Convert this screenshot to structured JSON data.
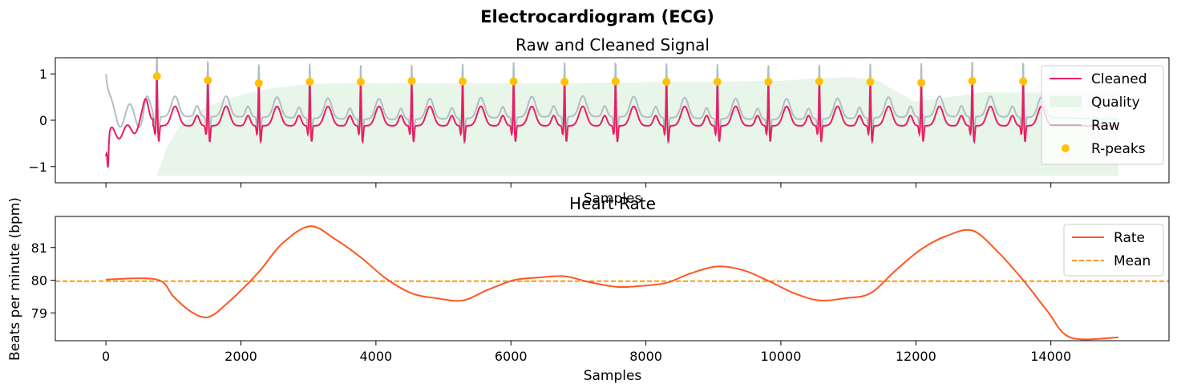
{
  "figure": {
    "suptitle": "Electrocardiogram (ECG)"
  },
  "chart_data": [
    {
      "type": "line",
      "title": "Raw and Cleaned Signal",
      "xlabel": "Samples",
      "ylabel": "",
      "xlim": [
        -750,
        15750
      ],
      "ylim": [
        -1.35,
        1.35
      ],
      "yticks": [
        -1,
        0,
        1
      ],
      "ytick_labels": [
        "−1",
        "0",
        "1"
      ],
      "xticks": [
        0,
        2000,
        4000,
        6000,
        8000,
        10000,
        12000,
        14000
      ],
      "xtick_labels_shown": false,
      "grid": false,
      "legend_position": "top-right",
      "series": [
        {
          "name": "Cleaned",
          "kind": "line",
          "color": "#E91E63"
        },
        {
          "name": "Quality",
          "kind": "area",
          "color": "#E8F5E9"
        },
        {
          "name": "Raw",
          "kind": "line",
          "color": "#B0BEC5"
        },
        {
          "name": "R-peaks",
          "kind": "scatter",
          "color": "#FFC107"
        }
      ],
      "r_peaks": {
        "x": [
          755,
          1510,
          2265,
          3020,
          3775,
          4530,
          5285,
          6040,
          6795,
          7550,
          8305,
          9060,
          9815,
          10570,
          11325,
          12080,
          12835,
          13590
        ],
        "y": [
          0.95,
          0.86,
          0.8,
          0.83,
          0.83,
          0.85,
          0.84,
          0.84,
          0.83,
          0.84,
          0.83,
          0.83,
          0.83,
          0.84,
          0.83,
          0.81,
          0.85,
          0.84
        ]
      },
      "quality": {
        "x": [
          750,
          900,
          1100,
          1500,
          2000,
          2500,
          3000,
          3500,
          4000,
          6000,
          7000,
          8000,
          9000,
          10000,
          10500,
          11000,
          11400,
          11800,
          12000,
          12500,
          13000,
          14000,
          14500,
          15000
        ],
        "y": [
          -1.2,
          -0.6,
          -0.1,
          0.3,
          0.55,
          0.7,
          0.78,
          0.8,
          0.8,
          0.8,
          0.8,
          0.82,
          0.83,
          0.85,
          0.9,
          0.93,
          0.88,
          0.55,
          0.4,
          0.5,
          0.6,
          0.6,
          0.6,
          0.6
        ],
        "baseline": -1.2
      }
    },
    {
      "type": "line",
      "title": "Heart Rate",
      "xlabel": "Samples",
      "ylabel": "Beats per minute (bpm)",
      "xlim": [
        -750,
        15750
      ],
      "ylim": [
        78.15,
        81.95
      ],
      "yticks": [
        79,
        80,
        81
      ],
      "xticks": [
        0,
        2000,
        4000,
        6000,
        8000,
        10000,
        12000,
        14000
      ],
      "xtick_labels": [
        "0",
        "2000",
        "4000",
        "6000",
        "8000",
        "10000",
        "12000",
        "14000"
      ],
      "grid": false,
      "legend_position": "top-right",
      "series": [
        {
          "name": "Rate",
          "color": "#FF5722",
          "x": [
            0,
            755,
            1000,
            1250,
            1510,
            1800,
            2265,
            2600,
            3020,
            3400,
            3775,
            4150,
            4530,
            4900,
            5285,
            5650,
            6040,
            6400,
            6795,
            7150,
            7550,
            7900,
            8305,
            8650,
            9060,
            9450,
            9815,
            10200,
            10570,
            10950,
            11325,
            11700,
            12080,
            12450,
            12835,
            13200,
            13590,
            13950,
            14290,
            15000
          ],
          "y": [
            80.02,
            80.02,
            79.5,
            79.05,
            78.87,
            79.3,
            80.25,
            81.1,
            81.65,
            81.25,
            80.7,
            80.05,
            79.6,
            79.45,
            79.38,
            79.7,
            80.0,
            80.08,
            80.12,
            79.95,
            79.8,
            79.82,
            79.92,
            80.2,
            80.42,
            80.3,
            79.98,
            79.6,
            79.38,
            79.45,
            79.6,
            80.3,
            80.95,
            81.35,
            81.52,
            80.9,
            80.0,
            79.05,
            78.25,
            78.25
          ]
        },
        {
          "name": "Mean",
          "color": "#FF9800",
          "style": "dashed",
          "value": 79.97
        }
      ]
    }
  ]
}
